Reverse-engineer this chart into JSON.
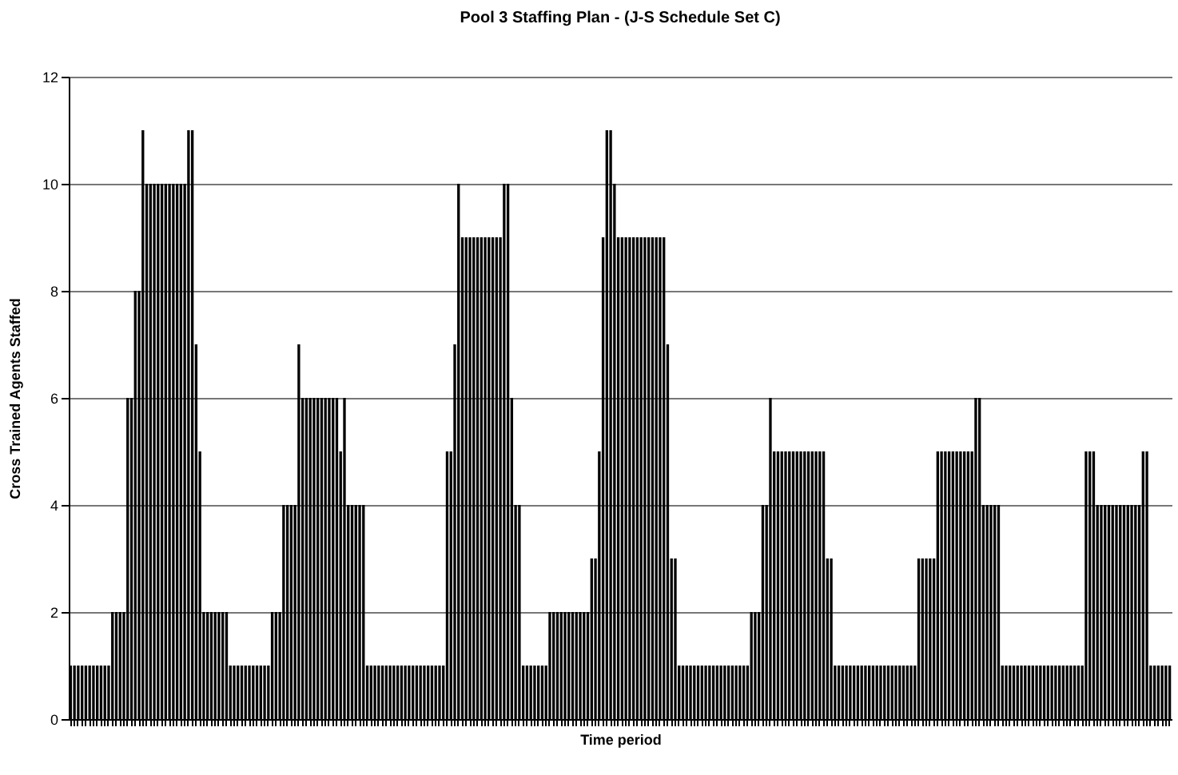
{
  "chart_data": {
    "type": "bar",
    "title": "Pool 3 Staffing Plan - (J-S Schedule Set C)",
    "xlabel": "Time period",
    "ylabel": "Cross Trained Agents Staffed",
    "color": "#000000",
    "categories": [
      null,
      null,
      null,
      null,
      null,
      null,
      null,
      null,
      null,
      null,
      null,
      null,
      null,
      null,
      null,
      null,
      null,
      null,
      null,
      null,
      null,
      null,
      null,
      null,
      null,
      null,
      null,
      null,
      null,
      null,
      null,
      null,
      null,
      null,
      null,
      null,
      null,
      null,
      null,
      null,
      null,
      null,
      null,
      null,
      null,
      null,
      null,
      null,
      null,
      null,
      null,
      null,
      null,
      null,
      null,
      null,
      null,
      null,
      null,
      null,
      null,
      null,
      null,
      null,
      null,
      null,
      null,
      null,
      null,
      null,
      null,
      null,
      null,
      null,
      null,
      null,
      null,
      null,
      null,
      null,
      null,
      null,
      null,
      null,
      null,
      null,
      null,
      null,
      null,
      null,
      null,
      null,
      null,
      null,
      null,
      null,
      null,
      null,
      null,
      null,
      null,
      null,
      null,
      null,
      null,
      null,
      null,
      null,
      null,
      null,
      null,
      null,
      null,
      null,
      null,
      null,
      null,
      null,
      null,
      null,
      null,
      null,
      null,
      null,
      null,
      null,
      null,
      null,
      null,
      null,
      null,
      null,
      null,
      null,
      null,
      null,
      null,
      null,
      null,
      null,
      null,
      null,
      null,
      null,
      null,
      null,
      null,
      null,
      null,
      null,
      null,
      null,
      null,
      null,
      null,
      null,
      null,
      null,
      null,
      null,
      null,
      null,
      null,
      null,
      null,
      null,
      null,
      null,
      null,
      null,
      null,
      null,
      null,
      null,
      null,
      null,
      null,
      null,
      null,
      null,
      null,
      null,
      null,
      null,
      null,
      null,
      null,
      null,
      null,
      null,
      null,
      null,
      null,
      null,
      null,
      null,
      null,
      null,
      null,
      null,
      null,
      null,
      null,
      null,
      null,
      null,
      null,
      null,
      null,
      null,
      null,
      null,
      null,
      null,
      null,
      null,
      null,
      null,
      null,
      null,
      null,
      null,
      null,
      null,
      null,
      null,
      null,
      null,
      null,
      null,
      null,
      null,
      null,
      null,
      null,
      null,
      null,
      null,
      null,
      null,
      null,
      null,
      null,
      null,
      null,
      null,
      null,
      null,
      null,
      null,
      null,
      null,
      null,
      null,
      null,
      null,
      null,
      null,
      null,
      null,
      null,
      null,
      null,
      null,
      null,
      null,
      null,
      null,
      null,
      null,
      null,
      null,
      null,
      null,
      null,
      null,
      null,
      null,
      null,
      null,
      null,
      null,
      null,
      null,
      null,
      null,
      null,
      null,
      null,
      null
    ],
    "values": [
      1,
      1,
      1,
      1,
      1,
      1,
      1,
      1,
      1,
      1,
      1,
      2,
      2,
      2,
      2,
      6,
      6,
      8,
      8,
      11,
      10,
      10,
      10,
      10,
      10,
      10,
      10,
      10,
      10,
      10,
      10,
      11,
      11,
      7,
      5,
      2,
      2,
      2,
      2,
      2,
      2,
      2,
      1,
      1,
      1,
      1,
      1,
      1,
      1,
      1,
      1,
      1,
      1,
      2,
      2,
      2,
      4,
      4,
      4,
      4,
      7,
      6,
      6,
      6,
      6,
      6,
      6,
      6,
      6,
      6,
      6,
      5,
      6,
      4,
      4,
      4,
      4,
      4,
      1,
      1,
      1,
      1,
      1,
      1,
      1,
      1,
      1,
      1,
      1,
      1,
      1,
      1,
      1,
      1,
      1,
      1,
      1,
      1,
      1,
      5,
      5,
      7,
      10,
      9,
      9,
      9,
      9,
      9,
      9,
      9,
      9,
      9,
      9,
      9,
      10,
      10,
      6,
      4,
      4,
      1,
      1,
      1,
      1,
      1,
      1,
      1,
      2,
      2,
      2,
      2,
      2,
      2,
      2,
      2,
      2,
      2,
      2,
      3,
      3,
      5,
      9,
      11,
      11,
      10,
      9,
      9,
      9,
      9,
      9,
      9,
      9,
      9,
      9,
      9,
      9,
      9,
      9,
      7,
      3,
      3,
      1,
      1,
      1,
      1,
      1,
      1,
      1,
      1,
      1,
      1,
      1,
      1,
      1,
      1,
      1,
      1,
      1,
      1,
      1,
      2,
      2,
      2,
      4,
      4,
      6,
      5,
      5,
      5,
      5,
      5,
      5,
      5,
      5,
      5,
      5,
      5,
      5,
      5,
      5,
      3,
      3,
      1,
      1,
      1,
      1,
      1,
      1,
      1,
      1,
      1,
      1,
      1,
      1,
      1,
      1,
      1,
      1,
      1,
      1,
      1,
      1,
      1,
      1,
      3,
      3,
      3,
      3,
      3,
      5,
      5,
      5,
      5,
      5,
      5,
      5,
      5,
      5,
      5,
      6,
      6,
      4,
      4,
      4,
      4,
      4,
      1,
      1,
      1,
      1,
      1,
      1,
      1,
      1,
      1,
      1,
      1,
      1,
      1,
      1,
      1,
      1,
      1,
      1,
      1,
      1,
      1,
      1,
      5,
      5,
      5,
      4,
      4,
      4,
      4,
      4,
      4,
      4,
      4,
      4,
      4,
      4,
      4,
      5,
      5,
      1,
      1,
      1,
      1,
      1,
      1
    ],
    "ylim": [
      0,
      12
    ],
    "yticks": [
      0,
      2,
      4,
      6,
      8,
      10,
      12
    ],
    "grid": "y"
  }
}
